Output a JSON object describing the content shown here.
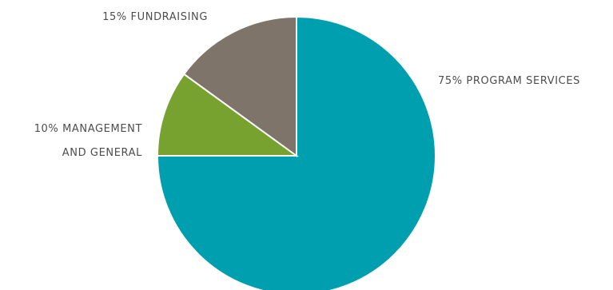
{
  "chart_data": {
    "type": "pie",
    "title": "",
    "legend": "none",
    "slices": [
      {
        "label_lines": [
          "75% PROGRAM SERVICES"
        ],
        "value": 75,
        "color": "#009fb0"
      },
      {
        "label_lines": [
          "10% MANAGEMENT",
          "AND GENERAL"
        ],
        "value": 10,
        "color": "#78a22f"
      },
      {
        "label_lines": [
          "15% FUNDRAISING"
        ],
        "value": 15,
        "color": "#7f7469"
      }
    ]
  }
}
